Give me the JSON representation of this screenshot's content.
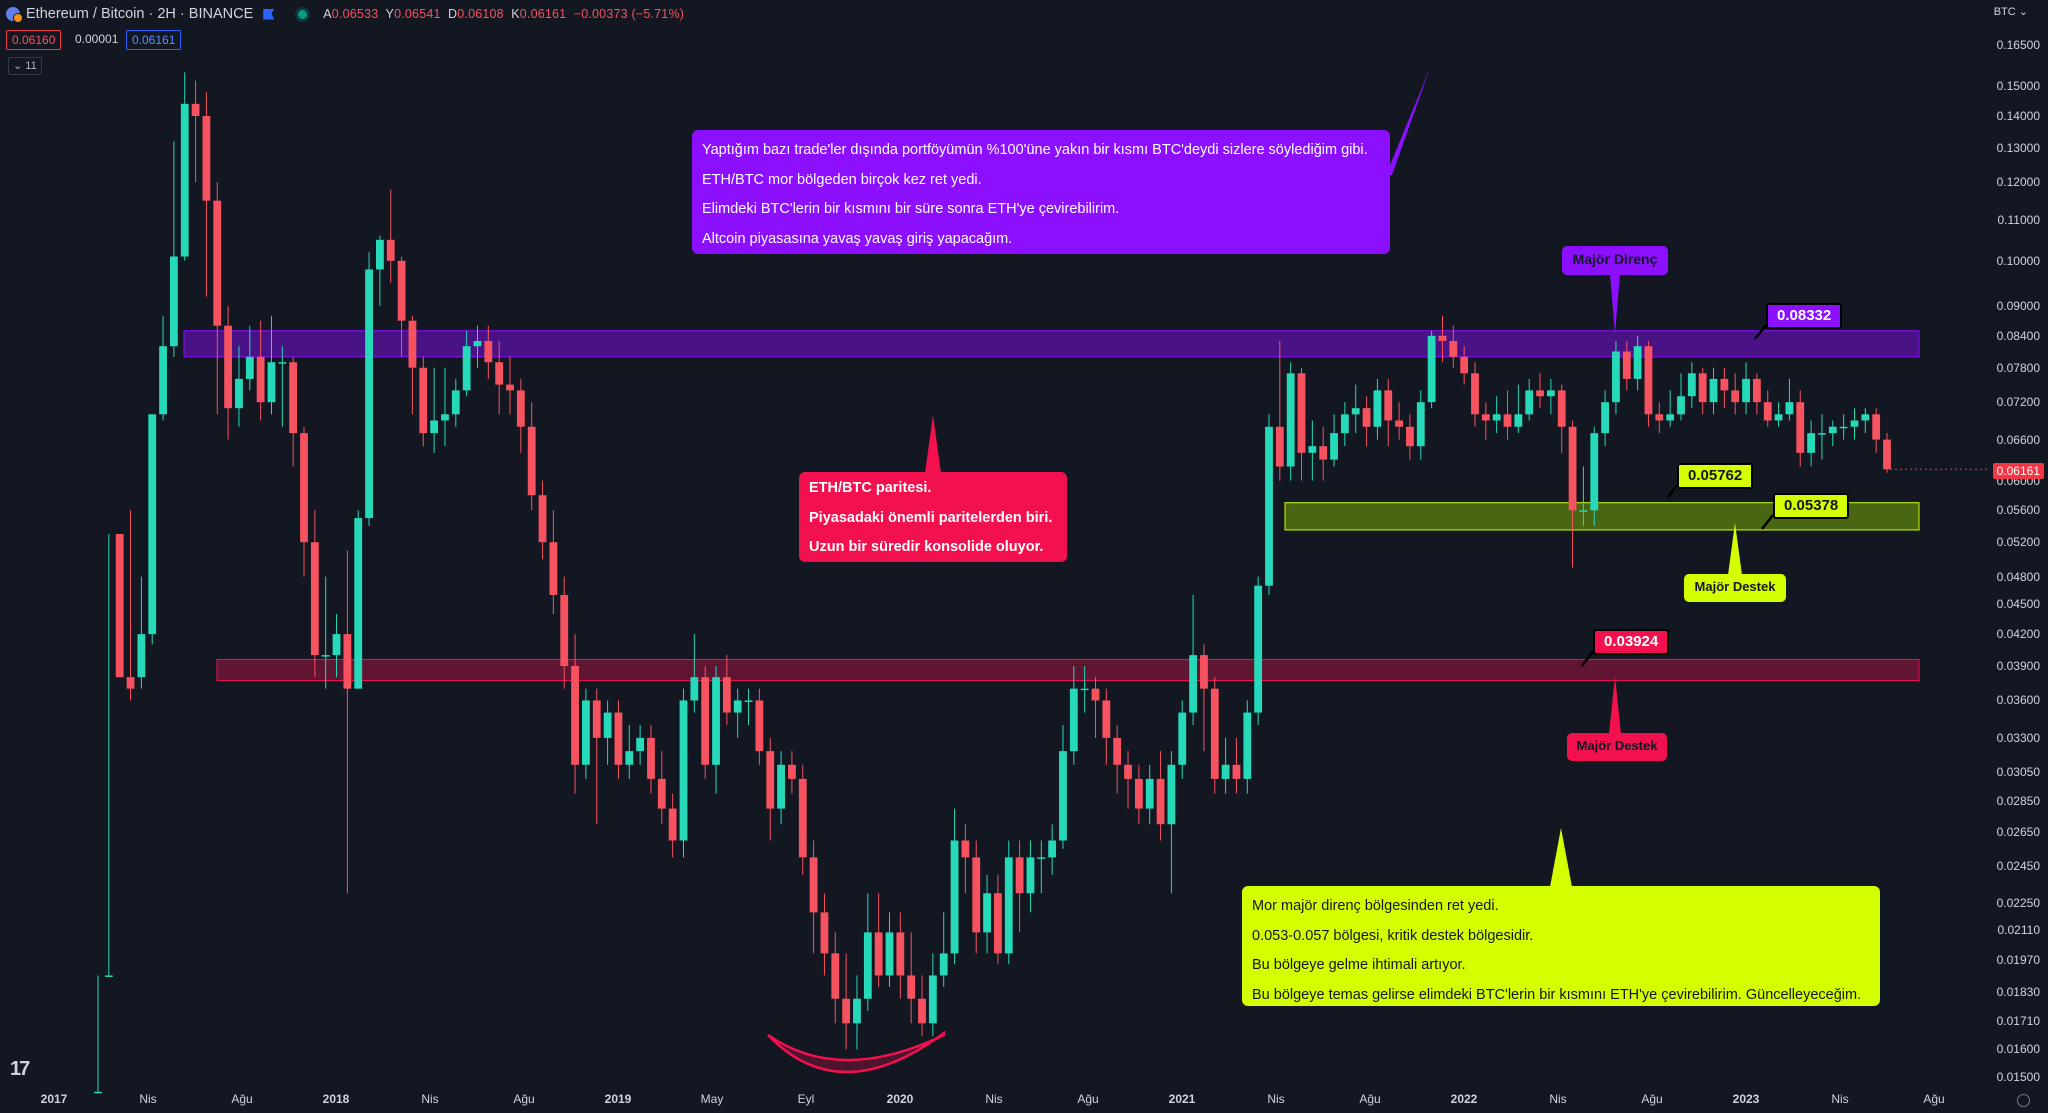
{
  "header": {
    "symbol": "Ethereum / Bitcoin · 2H · BINANCE",
    "open_label": "A",
    "open": "0.06533",
    "high_label": "Y",
    "high": "0.06541",
    "low_label": "D",
    "low": "0.06108",
    "close_label": "K",
    "close": "0.06161",
    "change": "−0.00373 (−5.71%)",
    "bid": "0.06160",
    "spread": "0.00001",
    "ask": "0.06161",
    "indicators_count": "11",
    "currency_selector": "BTC"
  },
  "notes": {
    "purple": [
      "Yaptığım bazı trade'ler dışında portföyümün %100'üne yakın bir kısmı BTC'deydi sizlere söylediğim gibi.",
      "ETH/BTC mor bölgeden birçok kez ret yedi.",
      "Elimdeki BTC'lerin bir kısmını bir süre sonra ETH'ye çevirebilirim.",
      "Altcoin piyasasına yavaş yavaş giriş yapacağım."
    ],
    "red": [
      "ETH/BTC paritesi.",
      "Piyasadaki önemli paritelerden biri.",
      "Uzun bir süredir konsolide oluyor."
    ],
    "yellow": [
      "Mor majör direnç bölgesinden ret yedi.",
      "0.053-0.057 bölgesi, kritik destek bölgesidir.",
      "Bu bölgeye gelme ihtimali artıyor.",
      "Bu bölgeye temas gelirse elimdeki BTC'lerin bir kısmını ETH'ye çevirebilirim. Güncelleyeceğim."
    ]
  },
  "tags": {
    "resistance": "Majör Direnç",
    "support_yellow": "Majör Destek",
    "support_red": "Majör Destek"
  },
  "price_labels": {
    "p1": "0.08332",
    "p2": "0.05762",
    "p3": "0.05378",
    "p4": "0.03924"
  },
  "current_price": "0.06161",
  "colors": {
    "up": "#26d9b8",
    "down": "#f7525f",
    "purple": "#8c0fff",
    "red": "#f2104f",
    "yellow": "#d4ff00",
    "background": "#131722"
  },
  "chart_data": {
    "type": "candlestick",
    "title": "Ethereum / Bitcoin · 2H · BINANCE",
    "y_scale": "log",
    "ylim": [
      0.01473,
      0.1655
    ],
    "y_ticks": [
      "0.16500",
      "0.15000",
      "0.14000",
      "0.13000",
      "0.12000",
      "0.11000",
      "0.10000",
      "0.09000",
      "0.08400",
      "0.07800",
      "0.07200",
      "0.06600",
      "0.06000",
      "0.05600",
      "0.05200",
      "0.04800",
      "0.04500",
      "0.04200",
      "0.03900",
      "0.03600",
      "0.03300",
      "0.03050",
      "0.02850",
      "0.02650",
      "0.02450",
      "0.02250",
      "0.02110",
      "0.01970",
      "0.01830",
      "0.01710",
      "0.01600",
      "0.01500"
    ],
    "x_ticks": [
      {
        "label": "2017",
        "year": true
      },
      {
        "label": "Nis"
      },
      {
        "label": "Ağu"
      },
      {
        "label": "2018",
        "year": true
      },
      {
        "label": "Nis"
      },
      {
        "label": "Ağu"
      },
      {
        "label": "2019",
        "year": true
      },
      {
        "label": "May"
      },
      {
        "label": "Eyl"
      },
      {
        "label": "2020",
        "year": true
      },
      {
        "label": "Nis"
      },
      {
        "label": "Ağu"
      },
      {
        "label": "2021",
        "year": true
      },
      {
        "label": "Nis"
      },
      {
        "label": "Ağu"
      },
      {
        "label": "2022",
        "year": true
      },
      {
        "label": "Nis"
      },
      {
        "label": "Ağu"
      },
      {
        "label": "2023",
        "year": true
      },
      {
        "label": "Nis"
      },
      {
        "label": "Ağu"
      }
    ],
    "zones": [
      {
        "name": "major-resistance",
        "from": 0.08,
        "to": 0.085,
        "color": "purple"
      },
      {
        "name": "major-support",
        "from": 0.0535,
        "to": 0.057,
        "color": "yellow"
      },
      {
        "name": "major-support-low",
        "from": 0.0377,
        "to": 0.0396,
        "color": "red"
      }
    ],
    "candles": [
      [
        0.0145,
        0.0145,
        0.019,
        0.0145
      ],
      [
        0.019,
        0.019,
        0.053,
        0.019
      ],
      [
        0.053,
        0.038,
        0.053,
        0.038
      ],
      [
        0.038,
        0.037,
        0.056,
        0.036
      ],
      [
        0.038,
        0.042,
        0.048,
        0.037
      ],
      [
        0.042,
        0.07,
        0.07,
        0.041
      ],
      [
        0.07,
        0.082,
        0.088,
        0.069
      ],
      [
        0.082,
        0.101,
        0.132,
        0.08
      ],
      [
        0.101,
        0.144,
        0.155,
        0.1
      ],
      [
        0.144,
        0.14,
        0.152,
        0.12
      ],
      [
        0.14,
        0.115,
        0.148,
        0.092
      ],
      [
        0.115,
        0.086,
        0.12,
        0.07
      ],
      [
        0.086,
        0.071,
        0.09,
        0.066
      ],
      [
        0.071,
        0.076,
        0.082,
        0.068
      ],
      [
        0.076,
        0.08,
        0.086,
        0.074
      ],
      [
        0.08,
        0.072,
        0.087,
        0.069
      ],
      [
        0.072,
        0.079,
        0.088,
        0.07
      ],
      [
        0.079,
        0.079,
        0.082,
        0.068
      ],
      [
        0.079,
        0.067,
        0.08,
        0.062
      ],
      [
        0.067,
        0.052,
        0.068,
        0.048
      ],
      [
        0.052,
        0.04,
        0.056,
        0.038
      ],
      [
        0.04,
        0.04,
        0.048,
        0.037
      ],
      [
        0.04,
        0.042,
        0.044,
        0.038
      ],
      [
        0.042,
        0.037,
        0.051,
        0.023
      ],
      [
        0.037,
        0.055,
        0.056,
        0.037
      ],
      [
        0.055,
        0.098,
        0.102,
        0.054
      ],
      [
        0.098,
        0.105,
        0.106,
        0.09
      ],
      [
        0.105,
        0.1,
        0.118,
        0.095
      ],
      [
        0.1,
        0.087,
        0.101,
        0.08
      ],
      [
        0.087,
        0.078,
        0.088,
        0.07
      ],
      [
        0.078,
        0.067,
        0.08,
        0.065
      ],
      [
        0.067,
        0.069,
        0.078,
        0.064
      ],
      [
        0.069,
        0.07,
        0.078,
        0.065
      ],
      [
        0.07,
        0.074,
        0.076,
        0.068
      ],
      [
        0.074,
        0.082,
        0.085,
        0.073
      ],
      [
        0.082,
        0.083,
        0.086,
        0.078
      ],
      [
        0.083,
        0.079,
        0.086,
        0.076
      ],
      [
        0.079,
        0.075,
        0.083,
        0.07
      ],
      [
        0.075,
        0.074,
        0.08,
        0.07
      ],
      [
        0.074,
        0.068,
        0.076,
        0.064
      ],
      [
        0.068,
        0.058,
        0.072,
        0.056
      ],
      [
        0.058,
        0.052,
        0.06,
        0.05
      ],
      [
        0.052,
        0.046,
        0.056,
        0.044
      ],
      [
        0.046,
        0.039,
        0.048,
        0.037
      ],
      [
        0.039,
        0.031,
        0.042,
        0.029
      ],
      [
        0.031,
        0.036,
        0.037,
        0.03
      ],
      [
        0.036,
        0.033,
        0.037,
        0.027
      ],
      [
        0.033,
        0.035,
        0.036,
        0.031
      ],
      [
        0.035,
        0.031,
        0.036,
        0.03
      ],
      [
        0.031,
        0.032,
        0.034,
        0.03
      ],
      [
        0.032,
        0.033,
        0.034,
        0.031
      ],
      [
        0.033,
        0.03,
        0.034,
        0.029
      ],
      [
        0.03,
        0.028,
        0.032,
        0.027
      ],
      [
        0.028,
        0.026,
        0.029,
        0.025
      ],
      [
        0.026,
        0.036,
        0.037,
        0.025
      ],
      [
        0.036,
        0.038,
        0.042,
        0.035
      ],
      [
        0.038,
        0.031,
        0.039,
        0.03
      ],
      [
        0.031,
        0.038,
        0.039,
        0.029
      ],
      [
        0.038,
        0.035,
        0.04,
        0.034
      ],
      [
        0.035,
        0.036,
        0.037,
        0.033
      ],
      [
        0.036,
        0.036,
        0.037,
        0.034
      ],
      [
        0.036,
        0.032,
        0.037,
        0.031
      ],
      [
        0.032,
        0.028,
        0.033,
        0.026
      ],
      [
        0.028,
        0.031,
        0.032,
        0.027
      ],
      [
        0.031,
        0.03,
        0.032,
        0.029
      ],
      [
        0.03,
        0.025,
        0.031,
        0.024
      ],
      [
        0.025,
        0.022,
        0.026,
        0.02
      ],
      [
        0.022,
        0.02,
        0.023,
        0.019
      ],
      [
        0.02,
        0.018,
        0.021,
        0.017
      ],
      [
        0.018,
        0.017,
        0.02,
        0.016
      ],
      [
        0.017,
        0.018,
        0.019,
        0.016
      ],
      [
        0.018,
        0.021,
        0.023,
        0.0175
      ],
      [
        0.021,
        0.019,
        0.023,
        0.0185
      ],
      [
        0.019,
        0.021,
        0.022,
        0.0185
      ],
      [
        0.021,
        0.019,
        0.022,
        0.018
      ],
      [
        0.019,
        0.018,
        0.021,
        0.017
      ],
      [
        0.018,
        0.017,
        0.019,
        0.0165
      ],
      [
        0.017,
        0.019,
        0.02,
        0.0165
      ],
      [
        0.019,
        0.02,
        0.022,
        0.0185
      ],
      [
        0.02,
        0.026,
        0.028,
        0.0195
      ],
      [
        0.026,
        0.025,
        0.027,
        0.023
      ],
      [
        0.025,
        0.021,
        0.026,
        0.02
      ],
      [
        0.021,
        0.023,
        0.024,
        0.02
      ],
      [
        0.023,
        0.02,
        0.024,
        0.0195
      ],
      [
        0.02,
        0.025,
        0.026,
        0.0195
      ],
      [
        0.025,
        0.023,
        0.026,
        0.021
      ],
      [
        0.023,
        0.025,
        0.026,
        0.022
      ],
      [
        0.025,
        0.025,
        0.026,
        0.023
      ],
      [
        0.025,
        0.026,
        0.027,
        0.024
      ],
      [
        0.026,
        0.032,
        0.034,
        0.0255
      ],
      [
        0.032,
        0.037,
        0.039,
        0.031
      ],
      [
        0.037,
        0.037,
        0.039,
        0.035
      ],
      [
        0.037,
        0.036,
        0.038,
        0.033
      ],
      [
        0.036,
        0.033,
        0.037,
        0.031
      ],
      [
        0.033,
        0.031,
        0.034,
        0.029
      ],
      [
        0.031,
        0.03,
        0.032,
        0.028
      ],
      [
        0.03,
        0.028,
        0.031,
        0.027
      ],
      [
        0.028,
        0.03,
        0.031,
        0.027
      ],
      [
        0.03,
        0.027,
        0.032,
        0.026
      ],
      [
        0.027,
        0.031,
        0.032,
        0.023
      ],
      [
        0.031,
        0.035,
        0.036,
        0.03
      ],
      [
        0.035,
        0.04,
        0.046,
        0.034
      ],
      [
        0.04,
        0.037,
        0.041,
        0.032
      ],
      [
        0.037,
        0.03,
        0.038,
        0.029
      ],
      [
        0.03,
        0.031,
        0.033,
        0.029
      ],
      [
        0.031,
        0.03,
        0.033,
        0.029
      ],
      [
        0.03,
        0.035,
        0.036,
        0.029
      ],
      [
        0.035,
        0.047,
        0.048,
        0.034
      ],
      [
        0.047,
        0.068,
        0.07,
        0.046
      ],
      [
        0.068,
        0.062,
        0.083,
        0.06
      ],
      [
        0.062,
        0.077,
        0.079,
        0.06
      ],
      [
        0.077,
        0.064,
        0.078,
        0.06
      ],
      [
        0.064,
        0.065,
        0.069,
        0.06
      ],
      [
        0.065,
        0.063,
        0.068,
        0.06
      ],
      [
        0.063,
        0.067,
        0.07,
        0.062
      ],
      [
        0.067,
        0.07,
        0.072,
        0.065
      ],
      [
        0.07,
        0.071,
        0.075,
        0.067
      ],
      [
        0.071,
        0.068,
        0.073,
        0.065
      ],
      [
        0.068,
        0.074,
        0.076,
        0.066
      ],
      [
        0.074,
        0.069,
        0.076,
        0.065
      ],
      [
        0.069,
        0.068,
        0.072,
        0.066
      ],
      [
        0.068,
        0.065,
        0.07,
        0.063
      ],
      [
        0.065,
        0.072,
        0.074,
        0.063
      ],
      [
        0.072,
        0.084,
        0.085,
        0.071
      ],
      [
        0.084,
        0.083,
        0.088,
        0.079
      ],
      [
        0.083,
        0.08,
        0.086,
        0.078
      ],
      [
        0.08,
        0.077,
        0.082,
        0.075
      ],
      [
        0.077,
        0.07,
        0.079,
        0.068
      ],
      [
        0.07,
        0.069,
        0.072,
        0.066
      ],
      [
        0.069,
        0.07,
        0.073,
        0.067
      ],
      [
        0.07,
        0.068,
        0.074,
        0.066
      ],
      [
        0.068,
        0.07,
        0.075,
        0.067
      ],
      [
        0.07,
        0.074,
        0.076,
        0.069
      ],
      [
        0.074,
        0.073,
        0.077,
        0.071
      ],
      [
        0.073,
        0.074,
        0.076,
        0.07
      ],
      [
        0.074,
        0.068,
        0.075,
        0.064
      ],
      [
        0.068,
        0.056,
        0.069,
        0.049
      ],
      [
        0.056,
        0.056,
        0.062,
        0.054
      ],
      [
        0.056,
        0.067,
        0.068,
        0.054
      ],
      [
        0.067,
        0.072,
        0.074,
        0.065
      ],
      [
        0.072,
        0.081,
        0.083,
        0.07
      ],
      [
        0.081,
        0.076,
        0.083,
        0.074
      ],
      [
        0.076,
        0.082,
        0.084,
        0.074
      ],
      [
        0.082,
        0.07,
        0.083,
        0.068
      ],
      [
        0.07,
        0.069,
        0.072,
        0.067
      ],
      [
        0.069,
        0.07,
        0.074,
        0.068
      ],
      [
        0.07,
        0.073,
        0.077,
        0.069
      ],
      [
        0.073,
        0.077,
        0.079,
        0.071
      ],
      [
        0.077,
        0.072,
        0.078,
        0.07
      ],
      [
        0.072,
        0.076,
        0.078,
        0.07
      ],
      [
        0.076,
        0.074,
        0.078,
        0.071
      ],
      [
        0.074,
        0.072,
        0.077,
        0.07
      ],
      [
        0.072,
        0.076,
        0.079,
        0.07
      ],
      [
        0.076,
        0.072,
        0.077,
        0.07
      ],
      [
        0.072,
        0.069,
        0.074,
        0.068
      ],
      [
        0.069,
        0.07,
        0.072,
        0.068
      ],
      [
        0.07,
        0.072,
        0.076,
        0.069
      ],
      [
        0.072,
        0.064,
        0.074,
        0.062
      ],
      [
        0.064,
        0.067,
        0.069,
        0.062
      ],
      [
        0.067,
        0.067,
        0.07,
        0.063
      ],
      [
        0.067,
        0.068,
        0.069,
        0.065
      ],
      [
        0.068,
        0.068,
        0.07,
        0.066
      ],
      [
        0.068,
        0.069,
        0.071,
        0.066
      ],
      [
        0.069,
        0.07,
        0.071,
        0.067
      ],
      [
        0.07,
        0.066,
        0.071,
        0.064
      ],
      [
        0.066,
        0.0616,
        0.067,
        0.0611
      ]
    ]
  }
}
